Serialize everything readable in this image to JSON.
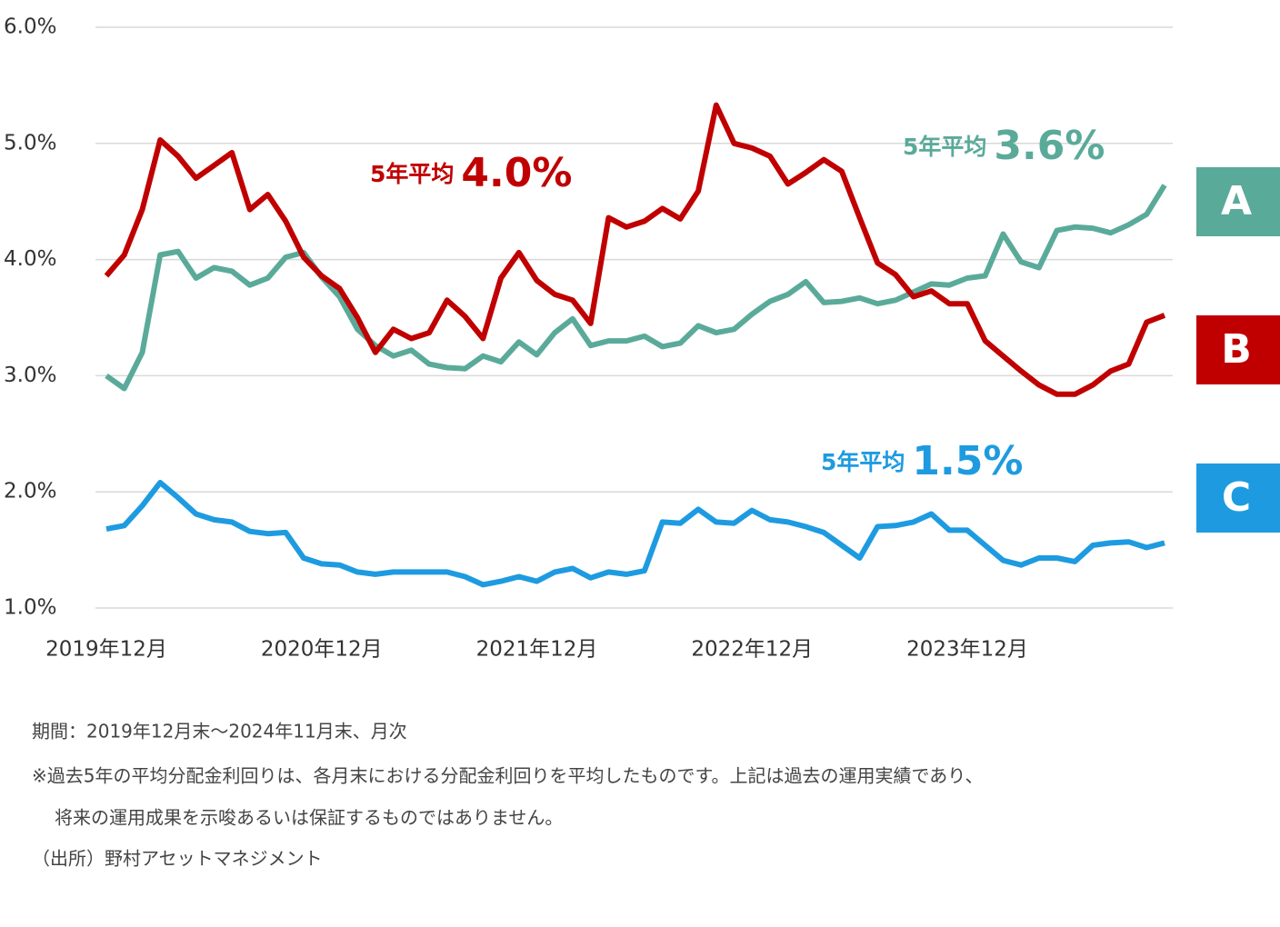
{
  "chart_data": {
    "type": "line",
    "categories": [
      "2019年12月",
      null,
      null,
      null,
      null,
      null,
      null,
      null,
      null,
      null,
      null,
      null,
      "2020年12月",
      null,
      null,
      null,
      null,
      null,
      null,
      null,
      null,
      null,
      null,
      null,
      "2021年12月",
      null,
      null,
      null,
      null,
      null,
      null,
      null,
      null,
      null,
      null,
      null,
      "2022年12月",
      null,
      null,
      null,
      null,
      null,
      null,
      null,
      null,
      null,
      null,
      null,
      "2023年12月",
      null,
      null,
      null,
      null,
      null,
      null,
      null,
      null,
      null,
      null,
      null
    ],
    "ylim": [
      1.0,
      6.0
    ],
    "yticks": [
      {
        "value": 1.0,
        "label": "1.0%"
      },
      {
        "value": 2.0,
        "label": "2.0%"
      },
      {
        "value": 3.0,
        "label": "3.0%"
      },
      {
        "value": 4.0,
        "label": "4.0%"
      },
      {
        "value": 5.0,
        "label": "5.0%"
      },
      {
        "value": 6.0,
        "label": "6.0%"
      }
    ],
    "grid": true,
    "series": [
      {
        "name": "A",
        "color": "#5aaa9a",
        "annotation": {
          "text": "5年平均",
          "value_text": "3.6%"
        },
        "values": [
          3.0,
          2.89,
          3.2,
          4.04,
          4.07,
          3.84,
          3.93,
          3.9,
          3.78,
          3.84,
          4.02,
          4.06,
          3.85,
          3.68,
          3.4,
          3.26,
          3.17,
          3.22,
          3.1,
          3.07,
          3.06,
          3.17,
          3.12,
          3.29,
          3.18,
          3.37,
          3.49,
          3.26,
          3.3,
          3.3,
          3.34,
          3.25,
          3.28,
          3.43,
          3.37,
          3.4,
          3.53,
          3.64,
          3.7,
          3.81,
          3.63,
          3.64,
          3.67,
          3.62,
          3.65,
          3.72,
          3.79,
          3.78,
          3.84,
          3.86,
          4.22,
          3.98,
          3.93,
          4.25,
          4.28,
          4.27,
          4.23,
          4.3,
          4.39,
          4.64
        ]
      },
      {
        "name": "B",
        "color": "#c00000",
        "annotation": {
          "text": "5年平均",
          "value_text": "4.0%"
        },
        "values": [
          3.86,
          4.04,
          4.43,
          5.03,
          4.89,
          4.7,
          4.81,
          4.92,
          4.43,
          4.56,
          4.33,
          4.02,
          3.86,
          3.75,
          3.5,
          3.2,
          3.4,
          3.32,
          3.37,
          3.65,
          3.51,
          3.32,
          3.84,
          4.06,
          3.82,
          3.7,
          3.65,
          3.45,
          4.36,
          4.28,
          4.33,
          4.44,
          4.35,
          4.59,
          5.33,
          5.0,
          4.96,
          4.89,
          4.65,
          4.75,
          4.86,
          4.76,
          4.36,
          3.97,
          3.87,
          3.68,
          3.73,
          3.62,
          3.62,
          3.3,
          3.17,
          3.04,
          2.92,
          2.84,
          2.84,
          2.92,
          3.04,
          3.1,
          3.46,
          3.52
        ]
      },
      {
        "name": "C",
        "color": "#1e9be0",
        "annotation": {
          "text": "5年平均",
          "value_text": "1.5%"
        },
        "values": [
          1.68,
          1.71,
          1.88,
          2.08,
          1.95,
          1.81,
          1.76,
          1.74,
          1.66,
          1.64,
          1.65,
          1.43,
          1.38,
          1.37,
          1.31,
          1.29,
          1.31,
          1.31,
          1.31,
          1.31,
          1.27,
          1.2,
          1.23,
          1.27,
          1.23,
          1.31,
          1.34,
          1.26,
          1.31,
          1.29,
          1.32,
          1.74,
          1.73,
          1.85,
          1.74,
          1.73,
          1.84,
          1.76,
          1.74,
          1.7,
          1.65,
          1.54,
          1.43,
          1.7,
          1.71,
          1.74,
          1.81,
          1.67,
          1.67,
          1.54,
          1.41,
          1.37,
          1.43,
          1.43,
          1.4,
          1.54,
          1.56,
          1.57,
          1.52,
          1.56
        ]
      }
    ],
    "notes": [
      "期間：2019年12月末～2024年11月末、月次",
      "※過去5年の平均分配金利回りは、各月末における分配金利回りを平均したものです。上記は過去の運用実績であり、",
      "将来の運用成果を示唆あるいは保証するものではありません。",
      "（出所）野村アセットマネジメント"
    ]
  }
}
